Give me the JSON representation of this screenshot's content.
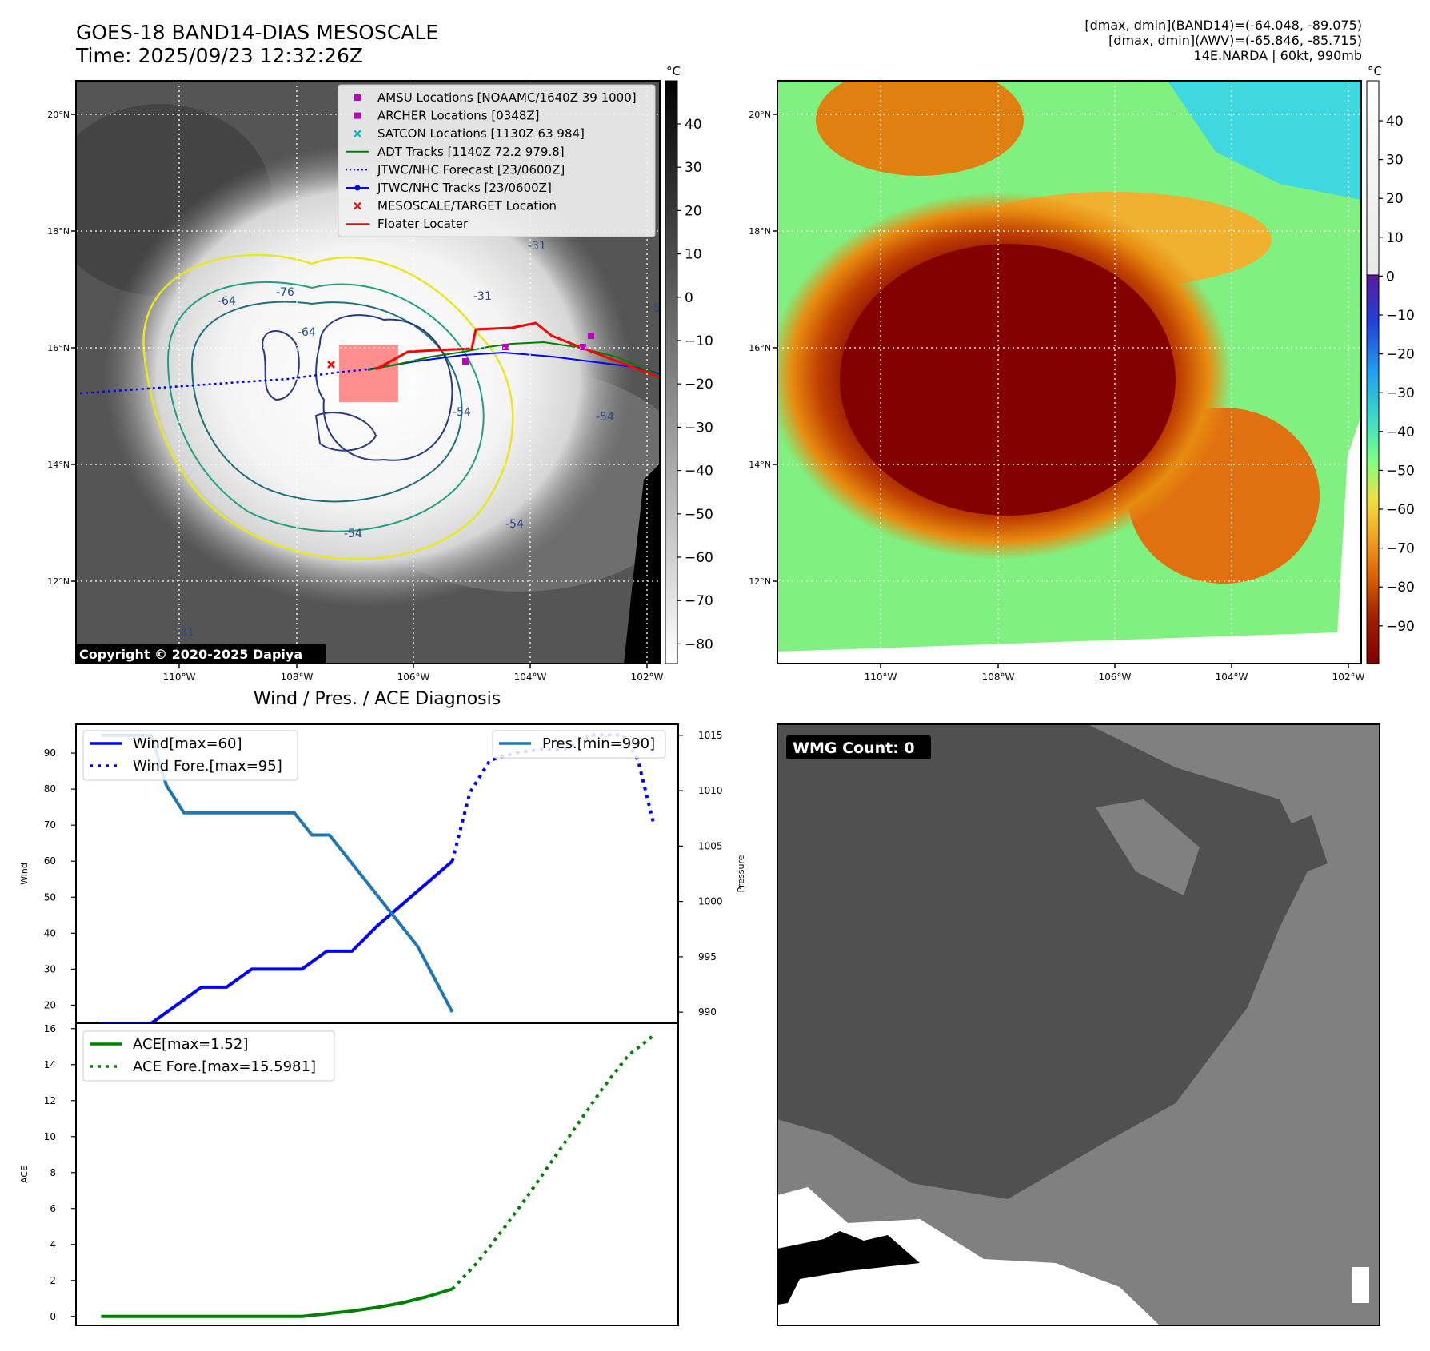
{
  "header": {
    "title_line1": "GOES-18 BAND14-DIAS MESOSCALE",
    "title_line2": "Time: 2025/09/23 12:32:26Z",
    "info_line1": "[dmax, dmin](BAND14)=(-64.048, -89.075)",
    "info_line2": "[dmax, dmin](AWV)=(-65.846, -85.715)",
    "info_line3": "14E.NARDA | 60kt, 990mb"
  },
  "map_axes": {
    "lat_ticks": [
      "20°N",
      "18°N",
      "16°N",
      "14°N",
      "12°N"
    ],
    "lon_ticks": [
      "110°W",
      "108°W",
      "106°W",
      "104°W",
      "102°W"
    ],
    "lat_range": [
      10.8,
      20.6
    ],
    "lon_range": [
      111.8,
      101.8
    ]
  },
  "panel_ir": {
    "copyright": "Copyright © 2020-2025 Dapiya",
    "colorbar_unit": "°C",
    "colorbar_ticks": [
      "40",
      "30",
      "20",
      "10",
      "0",
      "−10",
      "−20",
      "−30",
      "−40",
      "−50",
      "−60",
      "−70",
      "−80"
    ],
    "contour_labels": [
      "-64",
      "-76",
      "-64",
      "-54",
      "-31",
      "-54",
      "-54",
      "-31",
      "-54",
      "-31",
      "-54"
    ],
    "legend": [
      {
        "label": "AMSU Locations [NOAAMC/1640Z 39 1000]",
        "color": "#bf00bf",
        "marker": "square"
      },
      {
        "label": "ARCHER Locations [0348Z]",
        "color": "#bf00bf",
        "marker": "square"
      },
      {
        "label": "SATCON Locations [1130Z 63 984]",
        "color": "#00bfbf",
        "marker": "x"
      },
      {
        "label": "ADT Tracks [1140Z 72.2 979.8]",
        "color": "#008000",
        "marker": "line"
      },
      {
        "label": "JTWC/NHC Forecast [23/0600Z]",
        "color": "#0000ff",
        "marker": "dotted"
      },
      {
        "label": "JTWC/NHC Tracks [23/0600Z]",
        "color": "#0000ff",
        "marker": "line-dot"
      },
      {
        "label": "MESOSCALE/TARGET Location",
        "color": "#ff0000",
        "marker": "x"
      },
      {
        "label": "Floater Locater",
        "color": "#ff0000",
        "marker": "line"
      }
    ]
  },
  "panel_awv": {
    "colorbar_unit": "°C",
    "colorbar_ticks": [
      "40",
      "30",
      "20",
      "10",
      "0",
      "−10",
      "−20",
      "−30",
      "−40",
      "−50",
      "−60",
      "−70",
      "−80",
      "−90"
    ]
  },
  "panel_wmg": {
    "label": "WMG Count: 0"
  },
  "chart_data": [
    {
      "type": "line",
      "title": "Wind / Pres. / ACE Diagnosis",
      "ylabel": "Wind",
      "ylabel_right": "Pressure",
      "ylim": [
        15,
        98
      ],
      "ylim_right": [
        989,
        1016
      ],
      "y_ticks": [
        "90",
        "80",
        "70",
        "60",
        "50",
        "40",
        "30",
        "20"
      ],
      "y_ticks_right": [
        "1015",
        "1010",
        "1005",
        "1000",
        "995",
        "990"
      ],
      "x_index_range": [
        0,
        24
      ],
      "legend_left": [
        "Wind[max=60]",
        "Wind Fore.[max=95]"
      ],
      "legend_right": [
        "Pres.[min=990]"
      ],
      "series": [
        {
          "name": "Wind[max=60]",
          "color": "#0000ff",
          "style": "solid",
          "x": [
            1,
            3,
            4,
            5,
            6,
            7,
            8,
            9,
            10,
            11,
            12,
            13,
            14,
            15
          ],
          "values": [
            15,
            15,
            20,
            25,
            25,
            30,
            30,
            30,
            35,
            35,
            42,
            48,
            54,
            60
          ]
        },
        {
          "name": "Wind Fore.[max=95]",
          "color": "#0000ff",
          "style": "dotted",
          "x": [
            15,
            15.7,
            16.5,
            17.5,
            18.5,
            19.5,
            20.5,
            21.2,
            21.8,
            22.4,
            23
          ],
          "values": [
            60,
            79,
            88,
            90,
            91,
            91,
            95,
            95,
            95,
            88,
            71
          ]
        },
        {
          "name": "Pres.[min=990]",
          "color": "#1f77b4",
          "style": "solid",
          "axis": "right",
          "x": [
            1,
            3,
            3.6,
            4.3,
            8.7,
            9.4,
            10.1,
            13.6,
            14.3,
            15
          ],
          "values": [
            1015,
            1015,
            1010.5,
            1008,
            1008,
            1006,
            1006,
            996,
            993,
            990
          ]
        }
      ]
    },
    {
      "type": "line",
      "ylabel": "ACE",
      "ylim": [
        -0.5,
        16.3
      ],
      "y_ticks": [
        "16",
        "14",
        "12",
        "10",
        "8",
        "6",
        "4",
        "2",
        "0"
      ],
      "x_index_range": [
        0,
        24
      ],
      "legend": [
        "ACE[max=1.52]",
        "ACE Fore.[max=15.5981]"
      ],
      "series": [
        {
          "name": "ACE[max=1.52]",
          "color": "#008000",
          "style": "solid",
          "x": [
            1,
            3,
            5,
            7,
            9,
            10,
            11,
            12,
            13,
            14,
            15
          ],
          "values": [
            0,
            0,
            0,
            0,
            0,
            0.15,
            0.3,
            0.5,
            0.75,
            1.1,
            1.52
          ]
        },
        {
          "name": "ACE Fore.[max=15.5981]",
          "color": "#008000",
          "style": "dotted",
          "x": [
            15,
            16,
            17,
            18,
            19,
            20,
            21,
            22,
            23
          ],
          "values": [
            1.52,
            3.0,
            4.8,
            6.7,
            8.7,
            10.7,
            12.7,
            14.5,
            15.6
          ]
        }
      ]
    }
  ]
}
